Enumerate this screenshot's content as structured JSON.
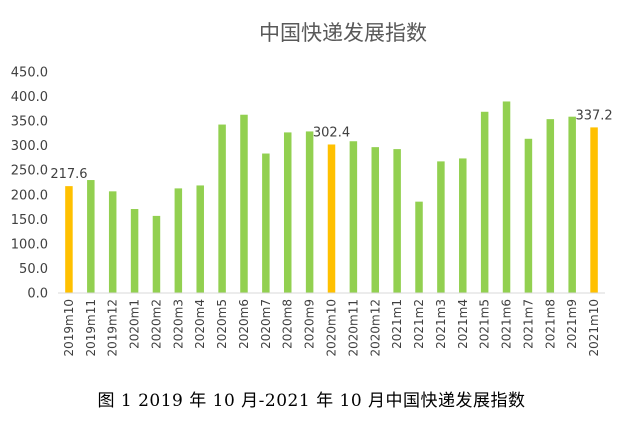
{
  "caption": "图 1   2019 年 10 月-2021 年 10 月中国快递发展指数",
  "colors": {
    "normal_bar": "#92D050",
    "highlight_bar": "#FFC000",
    "text": "#404040",
    "axis": "#D9D9D9"
  },
  "chart_data": {
    "type": "bar",
    "title": "中国快递发展指数",
    "xlabel": "",
    "ylabel": "",
    "ylim": [
      0,
      450
    ],
    "yticks": [
      "0.0",
      "50.0",
      "100.0",
      "150.0",
      "200.0",
      "250.0",
      "300.0",
      "350.0",
      "400.0",
      "450.0"
    ],
    "grid": false,
    "legend": "none",
    "categories": [
      "2019m10",
      "2019m11",
      "2019m12",
      "2020m1",
      "2020m2",
      "2020m3",
      "2020m4",
      "2020m5",
      "2020m6",
      "2020m7",
      "2020m8",
      "2020m9",
      "2020m10",
      "2020m11",
      "2020m12",
      "2021m1",
      "2021m2",
      "2021m3",
      "2021m4",
      "2021m5",
      "2021m6",
      "2021m7",
      "2021m8",
      "2021m9",
      "2021m10"
    ],
    "values": [
      217.6,
      230,
      207,
      171,
      157,
      213,
      219,
      343,
      363,
      284,
      327,
      329,
      302.4,
      309,
      297,
      293,
      186,
      268,
      274,
      369,
      390,
      314,
      354,
      359,
      337.2
    ],
    "highlighted": [
      "2019m10",
      "2020m10",
      "2021m10"
    ],
    "data_labels": {
      "2019m10": "217.6",
      "2020m10": "302.4",
      "2021m10": "337.2"
    }
  }
}
